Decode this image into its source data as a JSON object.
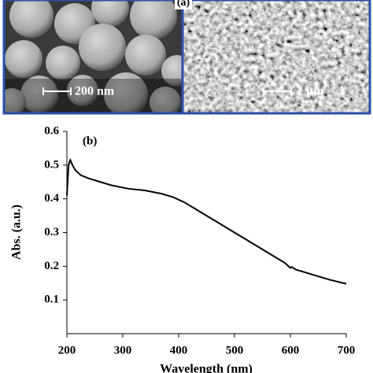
{
  "panel_a": {
    "label": "(a)",
    "left_scale": "200 nm",
    "right_scale": "2 µm"
  },
  "chart_data": {
    "type": "line",
    "panel_label": "(b)",
    "xlabel": "Wavelength (nm)",
    "ylabel": "Abs. (a.u.)",
    "x": [
      200,
      203,
      206,
      210,
      215,
      225,
      240,
      260,
      280,
      310,
      340,
      370,
      390,
      410,
      430,
      450,
      470,
      490,
      510,
      530,
      550,
      570,
      590,
      600,
      602,
      610,
      640,
      670,
      700
    ],
    "series": [
      {
        "name": "Abs",
        "color": "#000000",
        "values": [
          0.41,
          0.5,
          0.515,
          0.5,
          0.485,
          0.47,
          0.46,
          0.45,
          0.44,
          0.43,
          0.425,
          0.415,
          0.405,
          0.39,
          0.37,
          0.35,
          0.33,
          0.31,
          0.29,
          0.27,
          0.25,
          0.23,
          0.21,
          0.195,
          0.198,
          0.19,
          0.175,
          0.16,
          0.148
        ]
      }
    ],
    "xlim": [
      200,
      700
    ],
    "ylim": [
      0,
      0.6
    ],
    "xticks": [
      200,
      300,
      400,
      500,
      600,
      700
    ],
    "yticks": [
      0.1,
      0.2,
      0.3,
      0.4,
      0.5,
      0.6
    ]
  }
}
